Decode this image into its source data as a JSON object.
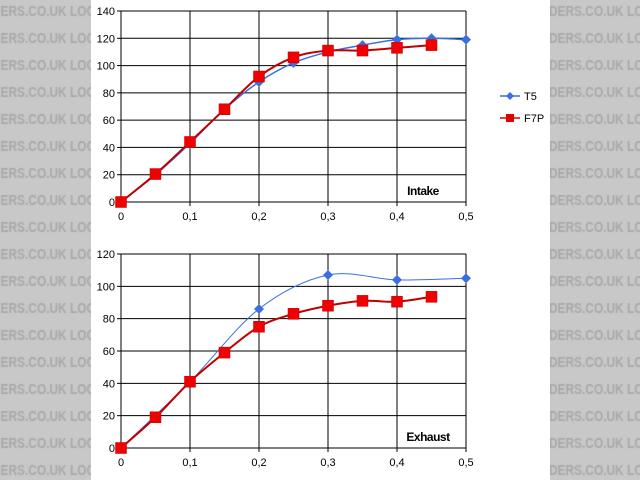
{
  "watermark": "DERS.CO.UK LOCOSTE",
  "legend": [
    {
      "name": "T5",
      "color": "#3a6fe0",
      "marker": "diamond"
    },
    {
      "name": "F7P",
      "color": "#e00000",
      "marker": "square"
    }
  ],
  "chart_data": [
    {
      "type": "line",
      "title": "Intake",
      "xlim": [
        0,
        0.5
      ],
      "ylim": [
        0,
        140
      ],
      "xticks": [
        "0",
        "0,1",
        "0,2",
        "0,3",
        "0,4",
        "0,5"
      ],
      "yticks": [
        "0",
        "20",
        "40",
        "60",
        "80",
        "100",
        "120",
        "140"
      ],
      "grid": true,
      "legend_position": "right",
      "series": [
        {
          "name": "T5",
          "x": [
            0,
            0.05,
            0.1,
            0.15,
            0.2,
            0.25,
            0.3,
            0.35,
            0.4,
            0.45,
            0.5
          ],
          "y": [
            0,
            20,
            43,
            68,
            88,
            102,
            110,
            115,
            119,
            120,
            119
          ]
        },
        {
          "name": "F7P",
          "x": [
            0,
            0.05,
            0.1,
            0.15,
            0.2,
            0.25,
            0.3,
            0.35,
            0.4,
            0.45
          ],
          "y": [
            0,
            20.5,
            44,
            68,
            92,
            106,
            111,
            111,
            113,
            115
          ]
        }
      ]
    },
    {
      "type": "line",
      "title": "Exhaust",
      "xlim": [
        0,
        0.5
      ],
      "ylim": [
        0,
        120
      ],
      "xticks": [
        "0",
        "0,1",
        "0,2",
        "0,3",
        "0,4",
        "0,5"
      ],
      "yticks": [
        "0",
        "20",
        "40",
        "60",
        "80",
        "100",
        "120"
      ],
      "grid": true,
      "legend_position": "right",
      "series": [
        {
          "name": "T5",
          "x": [
            0,
            0.1,
            0.2,
            0.3,
            0.4,
            0.5
          ],
          "y": [
            0,
            41,
            86,
            107,
            104,
            105
          ],
          "markers_at": [
            0.2,
            0.3,
            0.4,
            0.5
          ]
        },
        {
          "name": "F7P",
          "x": [
            0,
            0.05,
            0.1,
            0.15,
            0.2,
            0.25,
            0.3,
            0.35,
            0.4,
            0.45
          ],
          "y": [
            0,
            19,
            41,
            59,
            75,
            83,
            88,
            91,
            90.5,
            93.5
          ]
        }
      ]
    }
  ]
}
